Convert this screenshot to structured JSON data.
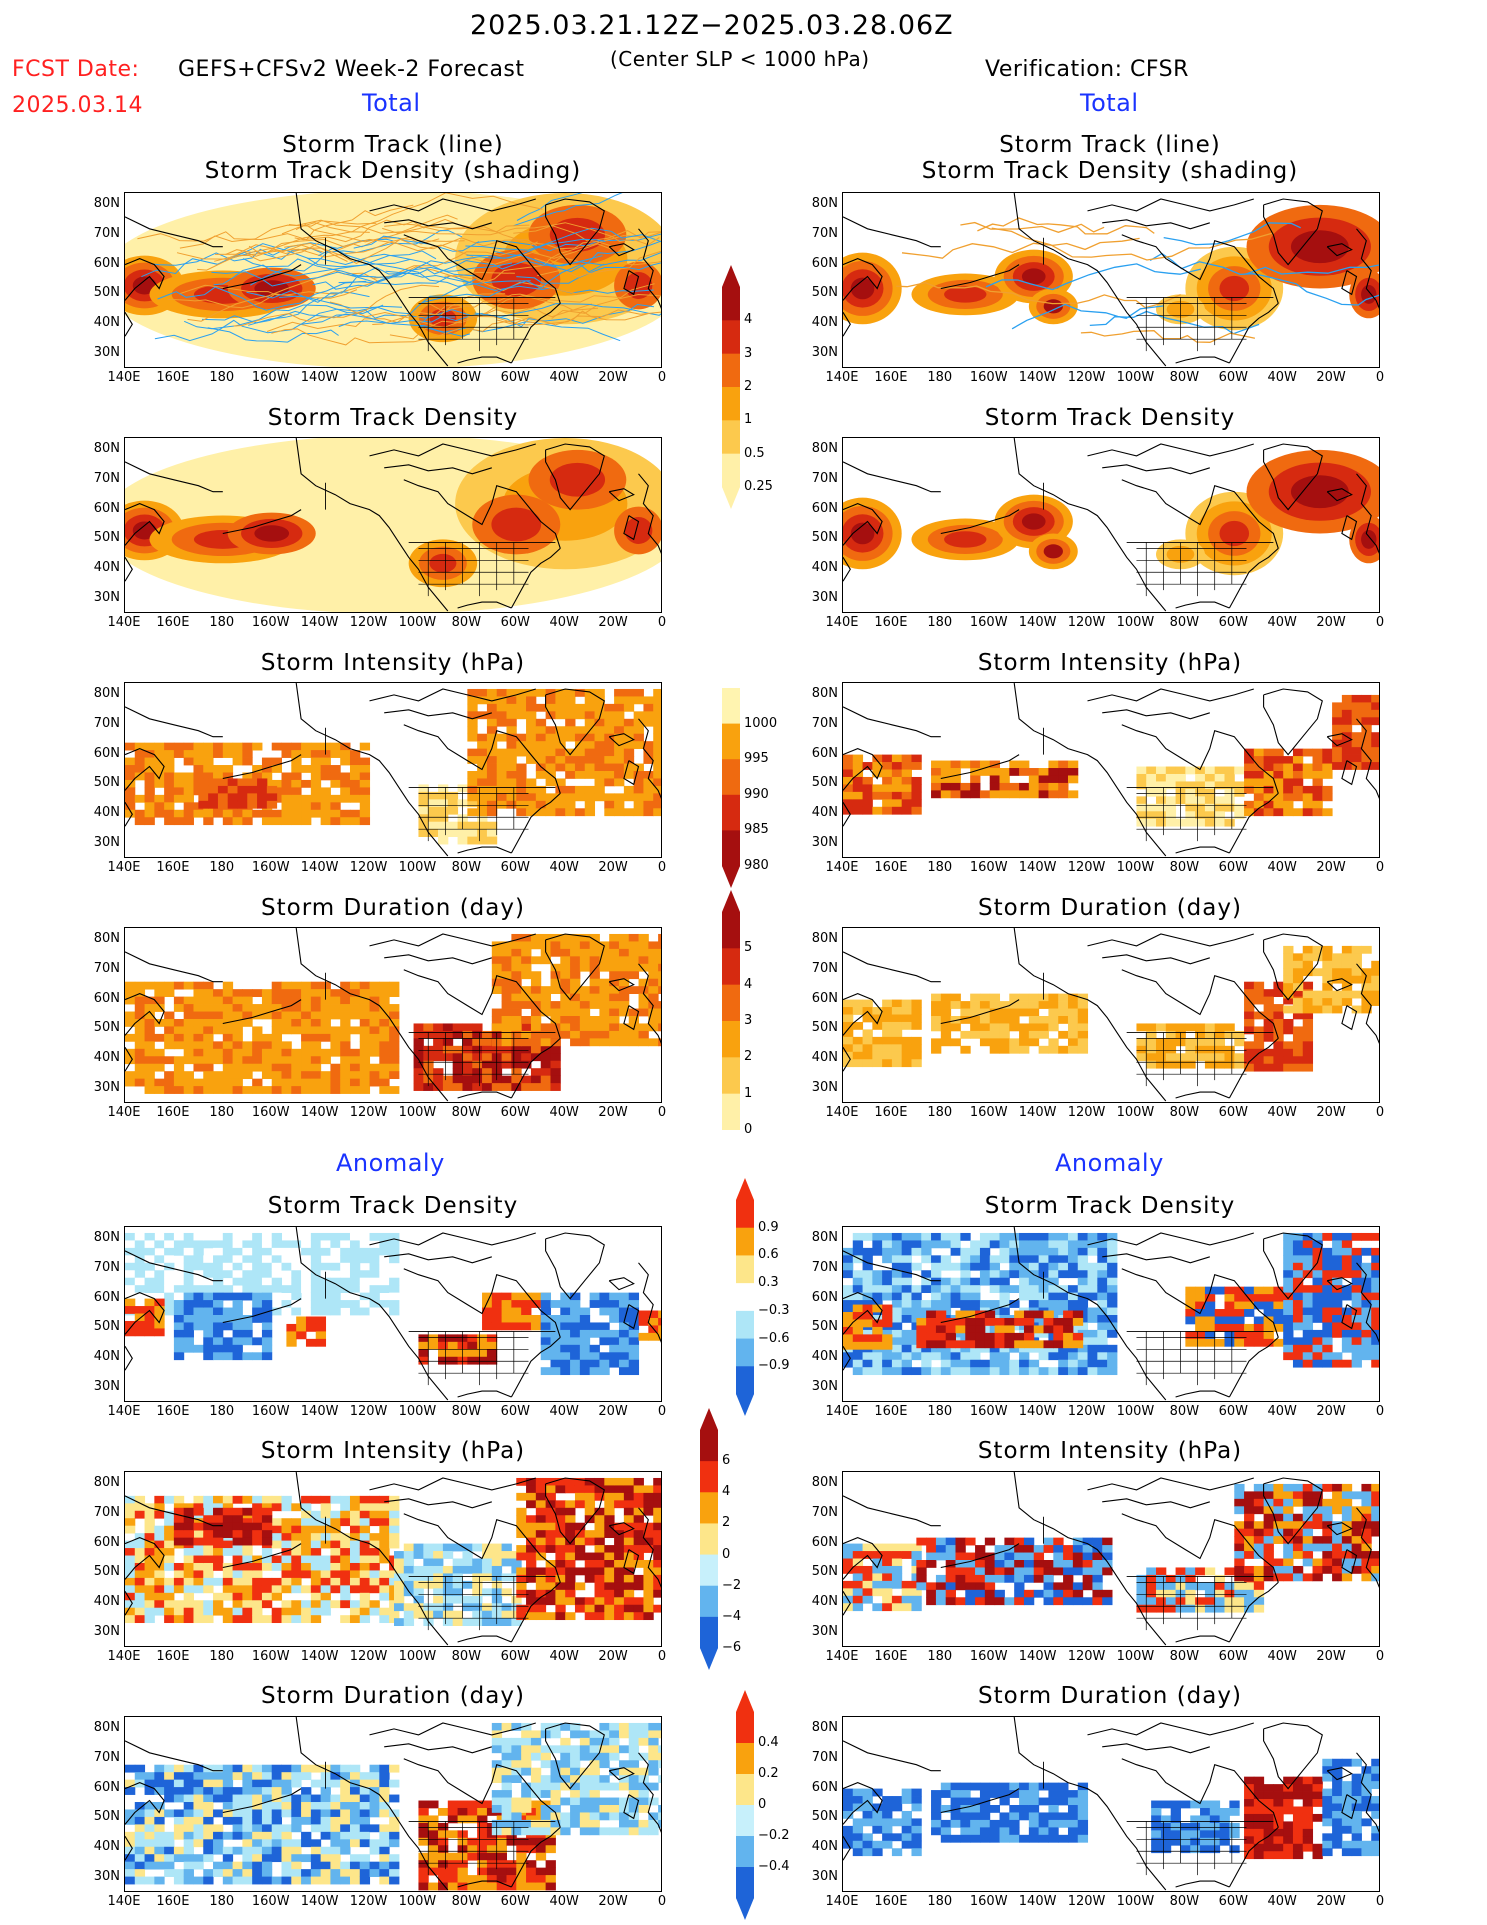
{
  "header": {
    "period": "2025.03.21.12Z−2025.03.28.06Z",
    "fcst_date_label": "FCST Date:",
    "fcst_date_value": "2025.03.14",
    "model": "GEFS+CFSv2 Week-2 Forecast",
    "criteria": "(Center SLP < 1000 hPa)",
    "verification": "Verification: CFSR"
  },
  "sections": {
    "total_left": "Total",
    "total_right": "Total",
    "anomaly_left": "Anomaly",
    "anomaly_right": "Anomaly"
  },
  "panel_titles": {
    "track_line": "Storm Track (line)",
    "track_shading": "Storm Track Density (shading)",
    "density": "Storm Track Density",
    "intensity": "Storm Intensity (hPa)",
    "duration": "Storm Duration (day)"
  },
  "axes": {
    "lat_labels": [
      "80N",
      "70N",
      "60N",
      "50N",
      "40N",
      "30N"
    ],
    "lon_labels": [
      "140E",
      "160E",
      "180",
      "160W",
      "140W",
      "120W",
      "100W",
      "80W",
      "60W",
      "40W",
      "20W",
      "0"
    ]
  },
  "colorbars": {
    "density_total": {
      "labels": [
        "4",
        "3",
        "2",
        "1",
        "0.5",
        "0.25"
      ],
      "colors": [
        "#a50f0f",
        "#d62a10",
        "#f06a10",
        "#f9a20e",
        "#fcc94d",
        "#fff0a8"
      ]
    },
    "intensity_total": {
      "labels": [
        "1000",
        "995",
        "990",
        "985",
        "980"
      ],
      "colors": [
        "#fff4b0",
        "#f9a20e",
        "#ef6a10",
        "#d62a10",
        "#a50f0f"
      ]
    },
    "duration_total": {
      "labels": [
        "5",
        "4",
        "3",
        "2",
        "1",
        "0"
      ],
      "colors": [
        "#a50f0f",
        "#d62a10",
        "#f06a10",
        "#f9a20e",
        "#fcc94d",
        "#fff0a8"
      ]
    },
    "density_anom": {
      "labels": [
        "0.9",
        "0.6",
        "0.3",
        "−0.3",
        "−0.6",
        "−0.9"
      ],
      "colors": [
        "#f03010",
        "#f9a20e",
        "#fde68a",
        "#ffffff",
        "#aee6f7",
        "#62b4ee",
        "#1e64d8"
      ]
    },
    "intensity_anom": {
      "labels": [
        "6",
        "4",
        "2",
        "0",
        "−2",
        "−4",
        "−6"
      ],
      "colors": [
        "#a50f0f",
        "#f03010",
        "#f9a20e",
        "#fde68a",
        "#c7f0fb",
        "#62b4ee",
        "#1e64d8"
      ]
    },
    "duration_anom": {
      "labels": [
        "0.4",
        "0.2",
        "0",
        "−0.2",
        "−0.4"
      ],
      "colors": [
        "#f03010",
        "#f9a20e",
        "#fde68a",
        "#c7f0fb",
        "#62b4ee",
        "#1e64d8"
      ]
    }
  },
  "colors": {
    "track_lines_orange": "#f0a030",
    "track_lines_blue": "#2aa0f0",
    "title_red": "#ff2020",
    "section_blue": "#1a33ff"
  }
}
